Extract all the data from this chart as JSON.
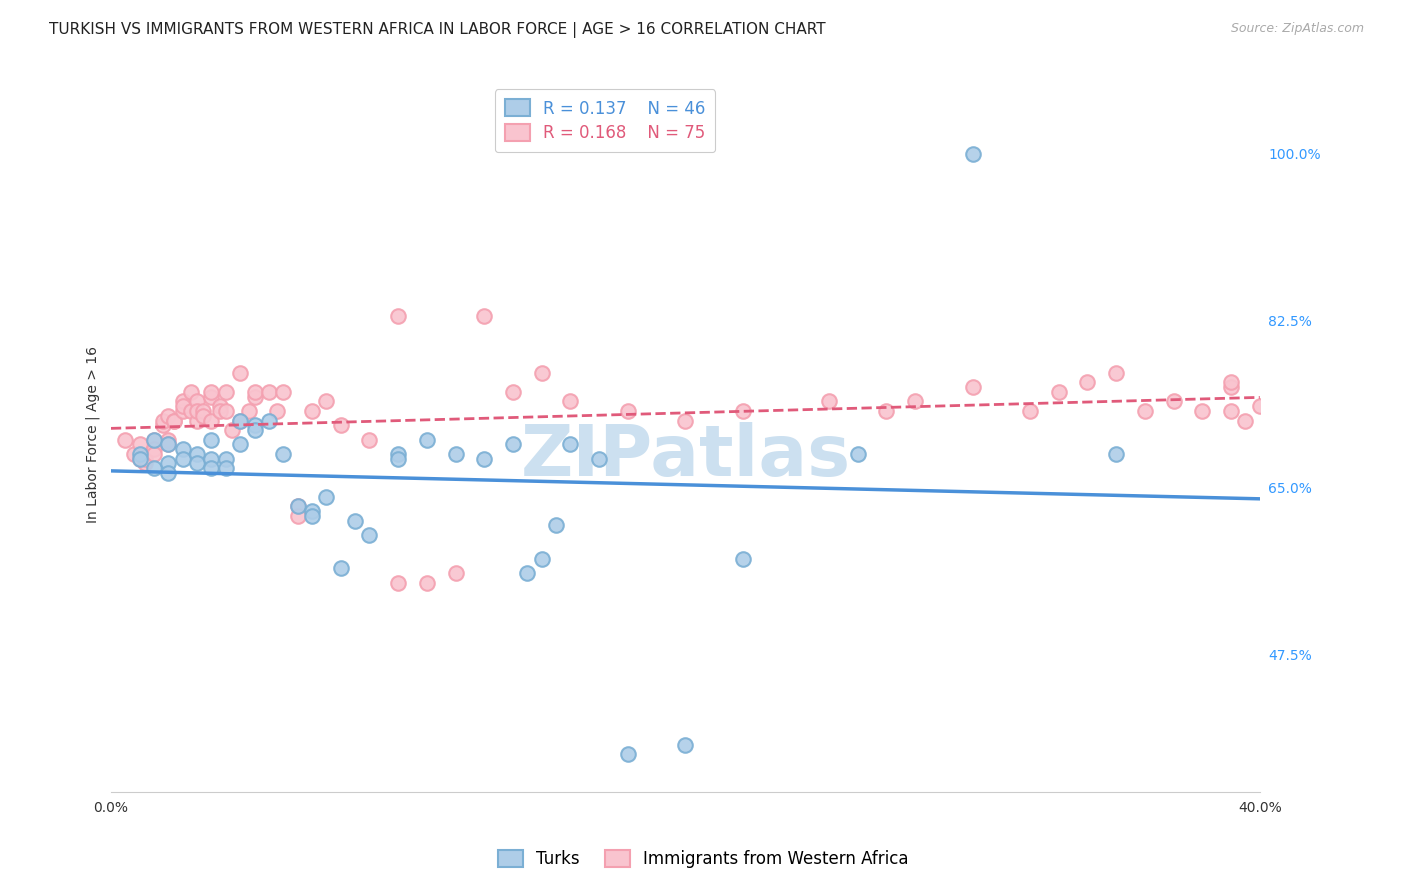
{
  "title": "TURKISH VS IMMIGRANTS FROM WESTERN AFRICA IN LABOR FORCE | AGE > 16 CORRELATION CHART",
  "source": "Source: ZipAtlas.com",
  "ylabel": "In Labor Force | Age > 16",
  "ytick_labels": [
    "100.0%",
    "82.5%",
    "65.0%",
    "47.5%"
  ],
  "ytick_values": [
    1.0,
    0.825,
    0.65,
    0.475
  ],
  "xlim": [
    0.0,
    0.4
  ],
  "ylim": [
    0.33,
    1.08
  ],
  "background_color": "#ffffff",
  "grid_color": "#cccccc",
  "turks_color": "#7bafd4",
  "turks_fill": "#aecde8",
  "immigrants_color": "#f4a0b0",
  "immigrants_fill": "#f9c4cf",
  "turks_R": 0.137,
  "turks_N": 46,
  "immigrants_R": 0.168,
  "immigrants_N": 75,
  "legend_turks_label": "Turks",
  "legend_immigrants_label": "Immigrants from Western Africa",
  "turks_scatter_x": [
    0.01,
    0.01,
    0.015,
    0.015,
    0.02,
    0.02,
    0.02,
    0.025,
    0.025,
    0.03,
    0.03,
    0.035,
    0.035,
    0.035,
    0.04,
    0.04,
    0.045,
    0.045,
    0.05,
    0.05,
    0.055,
    0.06,
    0.065,
    0.07,
    0.07,
    0.075,
    0.08,
    0.085,
    0.09,
    0.1,
    0.1,
    0.11,
    0.12,
    0.13,
    0.14,
    0.145,
    0.15,
    0.155,
    0.16,
    0.17,
    0.18,
    0.2,
    0.22,
    0.26,
    0.3,
    0.35
  ],
  "turks_scatter_y": [
    0.685,
    0.68,
    0.7,
    0.67,
    0.695,
    0.675,
    0.665,
    0.69,
    0.68,
    0.685,
    0.675,
    0.7,
    0.68,
    0.67,
    0.68,
    0.67,
    0.72,
    0.695,
    0.715,
    0.71,
    0.72,
    0.685,
    0.63,
    0.625,
    0.62,
    0.64,
    0.565,
    0.615,
    0.6,
    0.685,
    0.68,
    0.7,
    0.685,
    0.68,
    0.695,
    0.56,
    0.575,
    0.61,
    0.695,
    0.68,
    0.37,
    0.38,
    0.575,
    0.685,
    1.0,
    0.685
  ],
  "immigrants_scatter_x": [
    0.005,
    0.008,
    0.01,
    0.01,
    0.012,
    0.012,
    0.015,
    0.015,
    0.015,
    0.018,
    0.018,
    0.02,
    0.02,
    0.02,
    0.022,
    0.022,
    0.025,
    0.025,
    0.025,
    0.028,
    0.028,
    0.03,
    0.03,
    0.03,
    0.032,
    0.032,
    0.035,
    0.035,
    0.035,
    0.038,
    0.038,
    0.04,
    0.04,
    0.042,
    0.045,
    0.045,
    0.048,
    0.05,
    0.05,
    0.055,
    0.058,
    0.06,
    0.065,
    0.065,
    0.07,
    0.075,
    0.08,
    0.09,
    0.1,
    0.1,
    0.11,
    0.12,
    0.13,
    0.14,
    0.15,
    0.16,
    0.18,
    0.2,
    0.22,
    0.25,
    0.27,
    0.28,
    0.3,
    0.32,
    0.33,
    0.34,
    0.35,
    0.36,
    0.37,
    0.38,
    0.39,
    0.39,
    0.39,
    0.395,
    0.4
  ],
  "immigrants_scatter_y": [
    0.7,
    0.685,
    0.695,
    0.68,
    0.675,
    0.68,
    0.7,
    0.69,
    0.685,
    0.715,
    0.72,
    0.7,
    0.695,
    0.725,
    0.72,
    0.72,
    0.73,
    0.74,
    0.735,
    0.75,
    0.73,
    0.72,
    0.74,
    0.73,
    0.73,
    0.725,
    0.745,
    0.75,
    0.72,
    0.735,
    0.73,
    0.75,
    0.73,
    0.71,
    0.77,
    0.72,
    0.73,
    0.745,
    0.75,
    0.75,
    0.73,
    0.75,
    0.63,
    0.62,
    0.73,
    0.74,
    0.715,
    0.7,
    0.83,
    0.55,
    0.55,
    0.56,
    0.83,
    0.75,
    0.77,
    0.74,
    0.73,
    0.72,
    0.73,
    0.74,
    0.73,
    0.74,
    0.755,
    0.73,
    0.75,
    0.76,
    0.77,
    0.73,
    0.74,
    0.73,
    0.755,
    0.76,
    0.73,
    0.72,
    0.735
  ],
  "watermark_text": "ZIPatlas",
  "watermark_color": "#cce0f0",
  "watermark_fontsize": 52,
  "title_fontsize": 11,
  "axis_label_fontsize": 10,
  "tick_fontsize": 10,
  "legend_fontsize": 12,
  "source_fontsize": 9,
  "turks_line_color": "#4a90d9",
  "immigrants_line_color": "#e05a7a",
  "turks_line_style": "solid",
  "immigrants_line_style": "dashed",
  "legend_R_color_turks": "#4a90d9",
  "legend_R_color_immigrants": "#e05a7a",
  "legend_N_color_turks": "#4a90d9",
  "legend_N_color_immigrants": "#e05a7a"
}
